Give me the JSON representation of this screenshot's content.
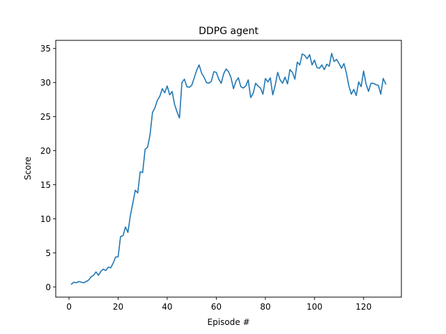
{
  "chart_data": {
    "type": "line",
    "title": "DDPG agent",
    "xlabel": "Episode #",
    "ylabel": "Score",
    "xlim": [
      -5.4,
      135.4
    ],
    "ylim": [
      -1.5,
      36.2
    ],
    "xticks": [
      0,
      20,
      40,
      60,
      80,
      100,
      120
    ],
    "yticks": [
      0,
      5,
      10,
      15,
      20,
      25,
      30,
      35
    ],
    "grid": false,
    "series": [
      {
        "color": "#1f77b4",
        "x": [
          1,
          2,
          3,
          4,
          5,
          6,
          7,
          8,
          9,
          10,
          11,
          12,
          13,
          14,
          15,
          16,
          17,
          18,
          19,
          20,
          21,
          22,
          23,
          24,
          25,
          26,
          27,
          28,
          29,
          30,
          31,
          32,
          33,
          34,
          35,
          36,
          37,
          38,
          39,
          40,
          41,
          42,
          43,
          44,
          45,
          46,
          47,
          48,
          49,
          50,
          51,
          52,
          53,
          54,
          55,
          56,
          57,
          58,
          59,
          60,
          61,
          62,
          63,
          64,
          65,
          66,
          67,
          68,
          69,
          70,
          71,
          72,
          73,
          74,
          75,
          76,
          77,
          78,
          79,
          80,
          81,
          82,
          83,
          84,
          85,
          86,
          87,
          88,
          89,
          90,
          91,
          92,
          93,
          94,
          95,
          96,
          97,
          98,
          99,
          100,
          101,
          102,
          103,
          104,
          105,
          106,
          107,
          108,
          109,
          110,
          111,
          112,
          113,
          114,
          115,
          116,
          117,
          118,
          119,
          120,
          121,
          122,
          123,
          124,
          125,
          126,
          127,
          128,
          129
        ],
        "y": [
          0.4,
          0.7,
          0.6,
          0.8,
          0.7,
          0.6,
          0.8,
          1.0,
          1.5,
          1.7,
          2.2,
          1.7,
          2.3,
          2.6,
          2.4,
          2.9,
          2.8,
          3.5,
          4.4,
          4.4,
          7.4,
          7.5,
          8.8,
          8.0,
          10.5,
          12.3,
          14.2,
          13.8,
          16.9,
          16.8,
          20.2,
          20.5,
          22.3,
          25.6,
          26.3,
          27.4,
          28.0,
          29.1,
          28.5,
          29.5,
          28.2,
          28.7,
          26.8,
          25.7,
          24.8,
          30.0,
          30.5,
          29.4,
          29.3,
          29.6,
          30.7,
          31.8,
          32.6,
          31.4,
          30.8,
          30.0,
          29.9,
          30.2,
          31.6,
          31.5,
          30.5,
          29.9,
          31.3,
          32.0,
          31.6,
          30.7,
          29.1,
          30.2,
          30.7,
          29.4,
          29.2,
          29.5,
          30.4,
          27.8,
          28.4,
          29.9,
          29.5,
          29.2,
          28.3,
          30.6,
          30.1,
          30.7,
          28.2,
          29.6,
          31.5,
          30.4,
          29.9,
          30.8,
          29.8,
          31.9,
          31.5,
          30.5,
          33.0,
          32.6,
          34.2,
          34.0,
          33.5,
          34.1,
          32.6,
          33.3,
          32.2,
          32.1,
          32.6,
          31.9,
          32.7,
          32.4,
          34.3,
          33.1,
          33.4,
          32.8,
          32.1,
          32.8,
          31.4,
          29.5,
          28.3,
          29.0,
          28.1,
          30.1,
          29.4,
          31.7,
          29.8,
          28.7,
          29.9,
          29.9,
          29.7,
          29.6,
          28.3,
          30.6,
          29.8
        ]
      }
    ]
  }
}
